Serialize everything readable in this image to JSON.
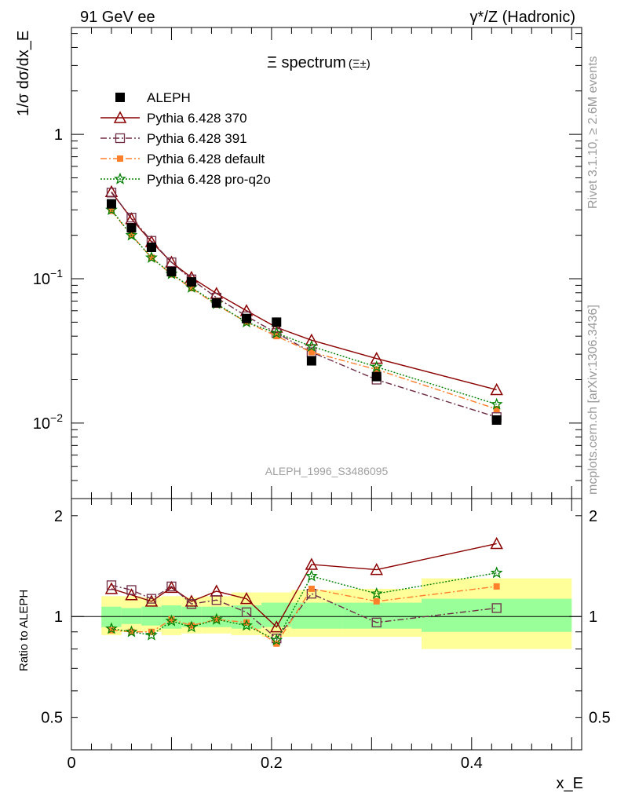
{
  "header": {
    "left": "91 GeV ee",
    "right": "γ*/Z (Hadronic)"
  },
  "side_text": {
    "rivet": "Rivet 3.1.10, ≥ 2.6M events",
    "mcplots": "mcplots.cern.ch [arXiv:1306.3436]"
  },
  "colors": {
    "data": "#000000",
    "p370": "#8b0000",
    "p391": "#6e2c45",
    "pdefault": "#ff7f2a",
    "pq2o": "#008000",
    "band_inner": "#99ff99",
    "band_outer": "#ffff99"
  },
  "chart_data": [
    {
      "type": "scatter",
      "title": "Ξ spectrum",
      "title_suffix": "(Ξ±)",
      "ylabel": "1/σ dσ/dx_E",
      "y_scale": "log",
      "ylim": [
        0.003,
        5.5
      ],
      "xlim": [
        0,
        0.51
      ],
      "y_ticks": [
        {
          "v": 1,
          "label": "1"
        },
        {
          "v": 0.1,
          "label": "10−1"
        },
        {
          "v": 0.01,
          "label": "10−2"
        }
      ],
      "watermark": "ALEPH_1996_S3486095",
      "legend_position": "top-left",
      "x": [
        0.04,
        0.06,
        0.08,
        0.1,
        0.12,
        0.145,
        0.175,
        0.205,
        0.24,
        0.305,
        0.425
      ],
      "series": [
        {
          "name": "ALEPH",
          "key": "data",
          "marker": "square-filled",
          "line": "none",
          "values": [
            0.33,
            0.225,
            0.165,
            0.112,
            0.095,
            0.068,
            0.053,
            0.05,
            0.027,
            0.021,
            0.0105
          ],
          "x_bins": [
            [
              0.03,
              0.05
            ],
            [
              0.05,
              0.07
            ],
            [
              0.07,
              0.09
            ],
            [
              0.09,
              0.11
            ],
            [
              0.11,
              0.13
            ],
            [
              0.13,
              0.16
            ],
            [
              0.16,
              0.19
            ],
            [
              0.19,
              0.22
            ],
            [
              0.22,
              0.27
            ],
            [
              0.27,
              0.35
            ],
            [
              0.35,
              0.5
            ]
          ]
        },
        {
          "name": "Pythia 6.428 370",
          "key": "p370",
          "marker": "triangle-open",
          "line": "solid",
          "values": [
            0.4,
            0.26,
            0.18,
            0.13,
            0.102,
            0.079,
            0.06,
            0.046,
            0.0375,
            0.028,
            0.017
          ]
        },
        {
          "name": "Pythia 6.428 391",
          "key": "p391",
          "marker": "square-open",
          "line": "dashdot",
          "values": [
            0.395,
            0.265,
            0.183,
            0.13,
            0.099,
            0.074,
            0.055,
            0.042,
            0.031,
            0.02,
            0.011
          ]
        },
        {
          "name": "Pythia 6.428 default",
          "key": "pdefault",
          "marker": "square-small",
          "line": "dashdot",
          "values": [
            0.295,
            0.2,
            0.14,
            0.107,
            0.086,
            0.066,
            0.05,
            0.04,
            0.031,
            0.0235,
            0.0125
          ]
        },
        {
          "name": "Pythia 6.428 pro-q2o",
          "key": "pq2o",
          "marker": "star",
          "line": "dotted",
          "values": [
            0.3,
            0.2,
            0.14,
            0.108,
            0.087,
            0.067,
            0.05,
            0.042,
            0.034,
            0.0245,
            0.0135
          ]
        }
      ]
    },
    {
      "type": "scatter",
      "ylabel": "Ratio to ALEPH",
      "xlabel": "x_E",
      "y_scale": "log",
      "ylim": [
        0.4,
        2.25
      ],
      "xlim": [
        0,
        0.51
      ],
      "x_ticks": [
        {
          "v": 0,
          "label": "0"
        },
        {
          "v": 0.2,
          "label": "0.2"
        },
        {
          "v": 0.4,
          "label": "0.4"
        }
      ],
      "y_ticks": [
        {
          "v": 2,
          "label": "2"
        },
        {
          "v": 1,
          "label": "1"
        },
        {
          "v": 0.5,
          "label": "0.5"
        }
      ],
      "bands": {
        "inner": [
          [
            0.93,
            1.07
          ],
          [
            0.95,
            1.06
          ],
          [
            0.94,
            1.07
          ],
          [
            0.92,
            1.08
          ],
          [
            0.93,
            1.07
          ],
          [
            0.93,
            1.07
          ],
          [
            0.92,
            1.08
          ],
          [
            0.93,
            1.1
          ],
          [
            0.92,
            1.1
          ],
          [
            0.92,
            1.1
          ],
          [
            0.9,
            1.13
          ]
        ],
        "outer": [
          [
            0.88,
            1.15
          ],
          [
            0.9,
            1.15
          ],
          [
            0.9,
            1.14
          ],
          [
            0.88,
            1.15
          ],
          [
            0.89,
            1.14
          ],
          [
            0.89,
            1.15
          ],
          [
            0.88,
            1.18
          ],
          [
            0.87,
            1.18
          ],
          [
            0.87,
            1.2
          ],
          [
            0.87,
            1.21
          ],
          [
            0.8,
            1.3
          ]
        ]
      },
      "series": [
        {
          "name": "Pythia 6.428 370",
          "key": "p370",
          "values": [
            1.21,
            1.16,
            1.11,
            1.22,
            1.11,
            1.19,
            1.13,
            0.93,
            1.43,
            1.38,
            1.65
          ]
        },
        {
          "name": "Pythia 6.428 391",
          "key": "p391",
          "values": [
            1.24,
            1.2,
            1.13,
            1.23,
            1.09,
            1.12,
            1.03,
            0.86,
            1.17,
            0.96,
            1.06
          ]
        },
        {
          "name": "Pythia 6.428 default",
          "key": "pdefault",
          "values": [
            0.91,
            0.9,
            0.9,
            0.98,
            0.94,
            0.98,
            0.96,
            0.83,
            1.21,
            1.11,
            1.23
          ]
        },
        {
          "name": "Pythia 6.428 pro-q2o",
          "key": "pq2o",
          "values": [
            0.92,
            0.9,
            0.88,
            0.97,
            0.93,
            0.98,
            0.94,
            0.85,
            1.32,
            1.17,
            1.35
          ]
        }
      ]
    }
  ]
}
